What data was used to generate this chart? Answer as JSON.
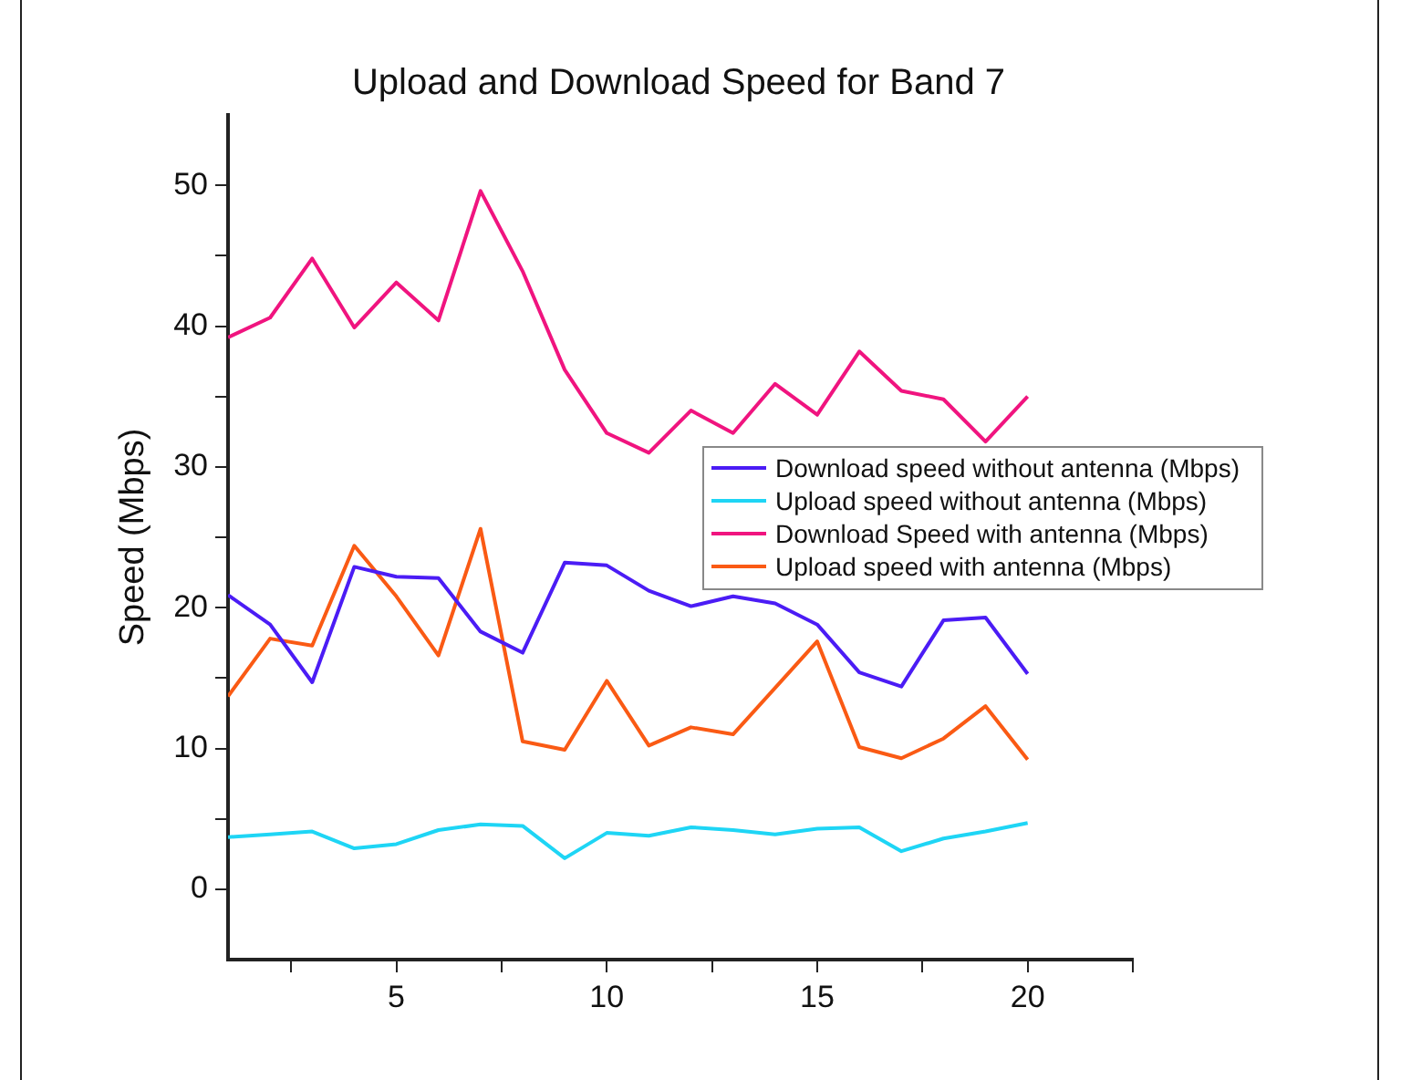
{
  "chart_data": {
    "type": "line",
    "title": "Upload and Download Speed for Band 7",
    "ylabel": "Speed (Mbps)",
    "x": [
      1,
      2,
      3,
      4,
      5,
      6,
      7,
      8,
      9,
      10,
      11,
      12,
      13,
      14,
      15,
      16,
      17,
      18,
      19,
      20
    ],
    "xlim": [
      1,
      22.5
    ],
    "xticks": [
      {
        "value": 2.5,
        "label": null
      },
      5,
      {
        "value": 7.5,
        "label": null
      },
      10,
      {
        "value": 12.5,
        "label": null
      },
      15,
      {
        "value": 17.5,
        "label": null
      },
      20,
      {
        "value": 22.5,
        "label": null
      }
    ],
    "ylim": [
      -5,
      55
    ],
    "yticks": [
      0,
      {
        "value": 5,
        "label": null
      },
      10,
      {
        "value": 15,
        "label": null
      },
      20,
      {
        "value": 25,
        "label": null
      },
      30,
      {
        "value": 35,
        "label": null
      },
      40,
      {
        "value": 45,
        "label": null
      },
      50
    ],
    "series": [
      {
        "name": "Download speed without antenna (Mbps)",
        "color": "#4b1cf5",
        "values": [
          20.9,
          18.8,
          14.7,
          22.9,
          22.2,
          22.1,
          18.3,
          16.8,
          23.2,
          23.0,
          21.2,
          20.1,
          20.8,
          20.3,
          18.8,
          15.4,
          14.4,
          19.1,
          19.3,
          15.3
        ]
      },
      {
        "name": "Upload speed without antenna (Mbps)",
        "color": "#1ed5f5",
        "values": [
          3.7,
          3.9,
          4.1,
          2.9,
          3.2,
          4.2,
          4.6,
          4.5,
          2.2,
          4.0,
          3.8,
          4.4,
          4.2,
          3.9,
          4.3,
          4.4,
          2.7,
          3.6,
          4.1,
          4.7
        ]
      },
      {
        "name": "Download Speed with antenna (Mbps)",
        "color": "#f0147f",
        "values": [
          39.2,
          40.6,
          44.8,
          39.9,
          43.1,
          40.4,
          49.6,
          43.9,
          36.9,
          32.4,
          31.0,
          34.0,
          32.4,
          35.9,
          33.7,
          38.2,
          35.4,
          34.8,
          31.8,
          35.0
        ]
      },
      {
        "name": "Upload speed with antenna (Mbps)",
        "color": "#fa5a14",
        "values": [
          13.7,
          17.8,
          17.3,
          24.4,
          20.8,
          16.6,
          25.6,
          10.5,
          9.9,
          14.8,
          10.2,
          11.5,
          11.0,
          14.3,
          17.6,
          10.1,
          9.3,
          10.7,
          13.0,
          9.2
        ]
      }
    ],
    "grid": false,
    "legend": "right",
    "marker": "none",
    "line_style": "solid"
  }
}
